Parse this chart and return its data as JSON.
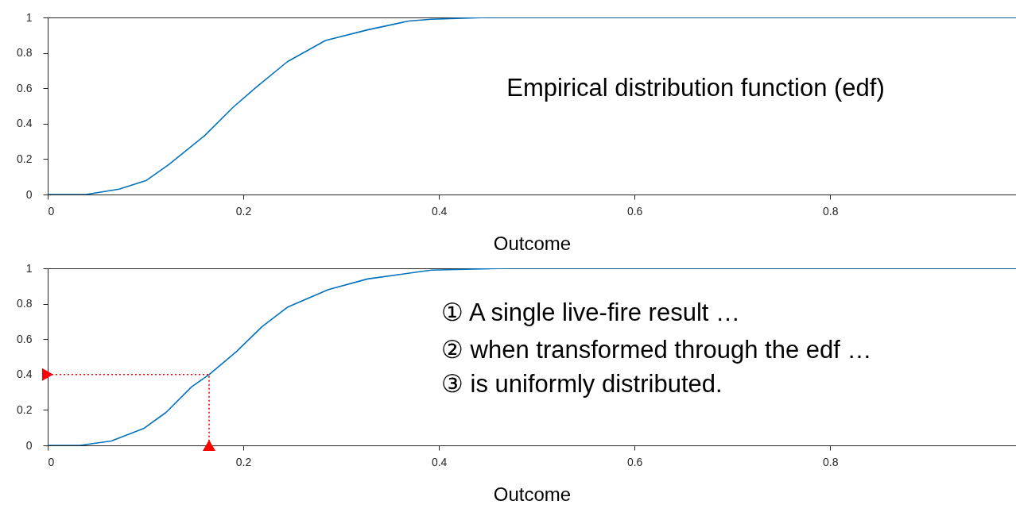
{
  "chart_data": [
    {
      "type": "line",
      "xlabel": "Outcome",
      "xlim": [
        0,
        0.99
      ],
      "ylim": [
        0,
        1
      ],
      "xticks": [
        0,
        0.2,
        0.4,
        0.6,
        0.8
      ],
      "yticks": [
        0,
        0.2,
        0.4,
        0.6,
        0.8,
        1
      ],
      "grid": false,
      "annotations": [
        "Empirical distribution function (edf)"
      ],
      "series": [
        {
          "color": "#0072bd",
          "x": [
            0,
            0.039,
            0.073,
            0.101,
            0.124,
            0.16,
            0.189,
            0.212,
            0.245,
            0.284,
            0.327,
            0.369,
            0.392,
            0.45,
            0.99
          ],
          "values": [
            0,
            0,
            0.03,
            0.08,
            0.17,
            0.33,
            0.49,
            0.6,
            0.75,
            0.87,
            0.93,
            0.98,
            0.99,
            1,
            1
          ]
        }
      ]
    },
    {
      "type": "line",
      "xlabel": "Outcome",
      "xlim": [
        0,
        0.99
      ],
      "ylim": [
        0,
        1
      ],
      "xticks": [
        0,
        0.2,
        0.4,
        0.6,
        0.8
      ],
      "yticks": [
        0,
        0.2,
        0.4,
        0.6,
        0.8,
        1
      ],
      "grid": false,
      "annotations": [
        "① A single live-fire result …",
        "② when transformed through the edf …",
        "③ is uniformly distributed."
      ],
      "series": [
        {
          "color": "#0072bd",
          "x": [
            0,
            0.033,
            0.065,
            0.098,
            0.121,
            0.147,
            0.165,
            0.193,
            0.219,
            0.245,
            0.287,
            0.327,
            0.392,
            0.47,
            0.99
          ],
          "values": [
            0,
            0,
            0.025,
            0.095,
            0.186,
            0.33,
            0.4,
            0.53,
            0.67,
            0.78,
            0.88,
            0.94,
            0.99,
            1,
            1
          ]
        },
        {
          "type": "line",
          "color": "#ff0000",
          "line_style": "dotted",
          "x": [
            0,
            0.165,
            0.165
          ],
          "values": [
            0.4,
            0.4,
            0
          ]
        },
        {
          "type": "scatter",
          "color": "#ff0000",
          "marker": "triangle",
          "x": [
            0,
            0.165
          ],
          "values": [
            0.4,
            0
          ]
        }
      ]
    }
  ]
}
